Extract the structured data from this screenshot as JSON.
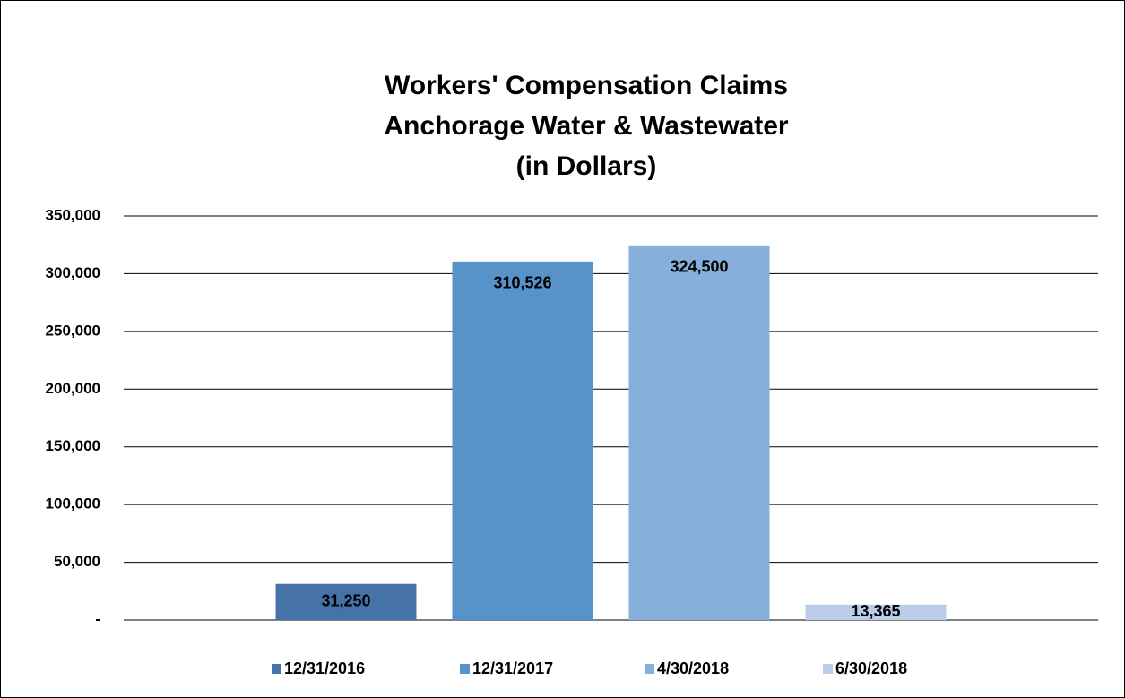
{
  "chart_data": {
    "type": "bar",
    "title": [
      "Workers' Compensation Claims",
      "Anchorage Water & Wastewater",
      "(in Dollars)"
    ],
    "series": [
      {
        "name": "12/31/2016",
        "color": "#4573a7",
        "values": [
          31250
        ],
        "value_labels": [
          "31,250"
        ]
      },
      {
        "name": "12/31/2017",
        "color": "#5793c9",
        "values": [
          310526
        ],
        "value_labels": [
          "310,526"
        ]
      },
      {
        "name": "4/30/2018",
        "color": "#87afdc",
        "values": [
          324500
        ],
        "value_labels": [
          "324,500"
        ]
      },
      {
        "name": "6/30/2018",
        "color": "#b9cde9",
        "values": [
          13365
        ],
        "value_labels": [
          "13,365"
        ]
      }
    ],
    "ylim": [
      0,
      350000
    ],
    "yticks": [
      {
        "value": 0,
        "label": "-"
      },
      {
        "value": 50000,
        "label": "50,000"
      },
      {
        "value": 100000,
        "label": "100,000"
      },
      {
        "value": 150000,
        "label": "150,000"
      },
      {
        "value": 200000,
        "label": "200,000"
      },
      {
        "value": 250000,
        "label": "250,000"
      },
      {
        "value": 300000,
        "label": "300,000"
      },
      {
        "value": 350000,
        "label": "350,000"
      }
    ],
    "grid": true,
    "legend": "bottom"
  }
}
